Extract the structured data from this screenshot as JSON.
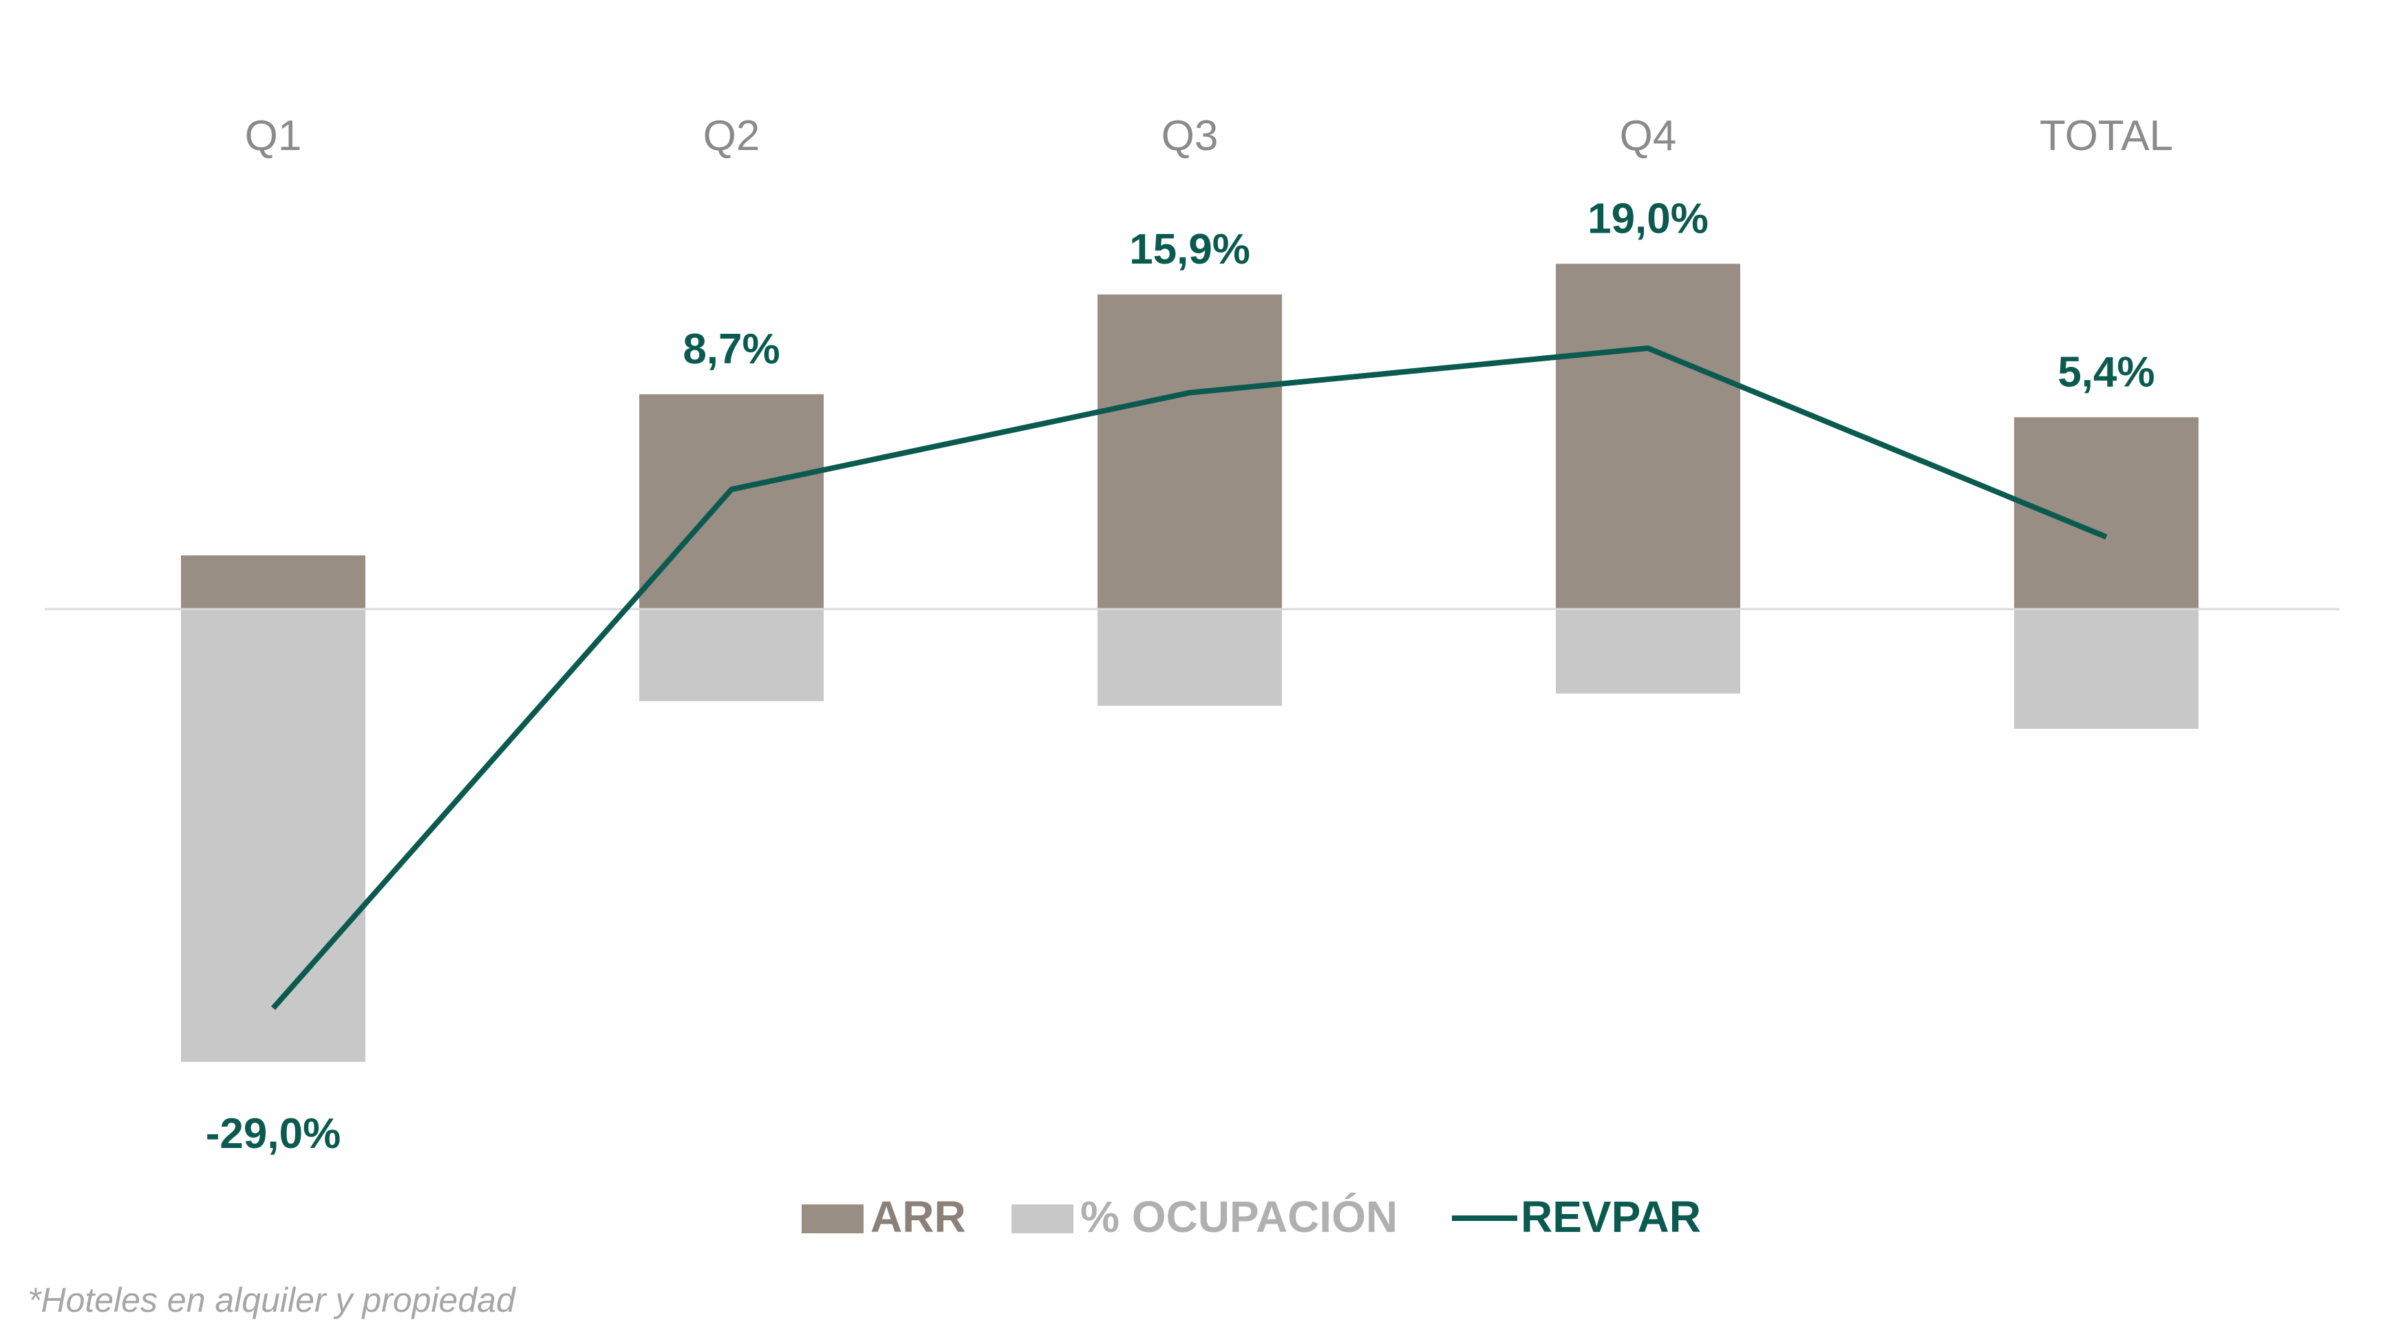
{
  "chart_data": {
    "type": "bar",
    "categories": [
      "Q1",
      "Q2",
      "Q3",
      "Q4",
      "TOTAL"
    ],
    "series": [
      {
        "name": "ARR",
        "type": "bar",
        "color": "#998e84",
        "values": [
          3.5,
          14,
          20.5,
          22.5,
          12.5
        ]
      },
      {
        "name": "% OCUPACIÓN",
        "type": "bar",
        "color": "#c8c8c8",
        "values": [
          -29.5,
          -6,
          -6.3,
          -5.5,
          -7.8
        ]
      },
      {
        "name": "REVPAR",
        "type": "line",
        "color": "#0b5a50",
        "values": [
          -26,
          7.8,
          14.1,
          17,
          4.7
        ]
      }
    ],
    "data_labels": [
      "-29,0%",
      "8,7%",
      "15,9%",
      "19,0%",
      "5,4%"
    ],
    "ylim": [
      -38,
      40
    ],
    "grid": false,
    "legend_position": "bottom"
  },
  "footnote": "*Hoteles en alquiler y propiedad"
}
